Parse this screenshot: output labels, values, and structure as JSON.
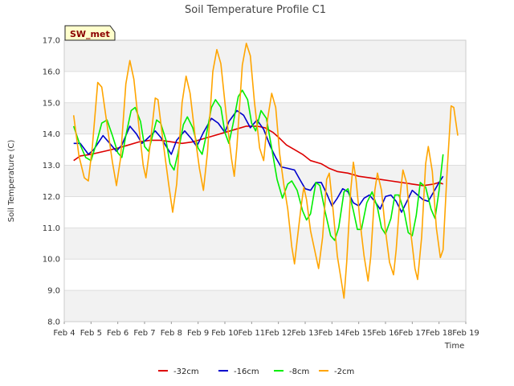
{
  "chart_data": {
    "type": "line",
    "title": "Soil Temperature Profile C1",
    "xlabel": "Time",
    "ylabel": "Soil Temperature (C)",
    "badge": "SW_met",
    "ylim": [
      8.0,
      17.0
    ],
    "xlim": [
      4,
      19
    ],
    "y_ticks": [
      "8.0",
      "9.0",
      "10.0",
      "11.0",
      "12.0",
      "13.0",
      "14.0",
      "15.0",
      "16.0",
      "17.0"
    ],
    "x_ticks": [
      "Feb 4",
      "Feb 5",
      "Feb 6",
      "Feb 7",
      "Feb 8",
      "Feb 9",
      "Feb 10",
      "Feb 11",
      "Feb 12",
      "Feb 13",
      "Feb 14",
      "Feb 15",
      "Feb 16",
      "Feb 17",
      "Feb 18",
      "Feb 19"
    ],
    "grid": true,
    "legend_position": "bottom-center",
    "series": [
      {
        "name": "-32cm",
        "color": "#dd0000",
        "points": [
          [
            4.35,
            13.15
          ],
          [
            4.6,
            13.3
          ],
          [
            5.0,
            13.35
          ],
          [
            5.5,
            13.45
          ],
          [
            6.0,
            13.55
          ],
          [
            6.4,
            13.65
          ],
          [
            6.8,
            13.75
          ],
          [
            7.2,
            13.8
          ],
          [
            7.6,
            13.8
          ],
          [
            8.0,
            13.75
          ],
          [
            8.4,
            13.7
          ],
          [
            8.8,
            13.75
          ],
          [
            9.2,
            13.85
          ],
          [
            9.6,
            13.95
          ],
          [
            10.0,
            14.05
          ],
          [
            10.4,
            14.15
          ],
          [
            10.8,
            14.25
          ],
          [
            11.2,
            14.25
          ],
          [
            11.5,
            14.2
          ],
          [
            11.8,
            14.05
          ],
          [
            12.0,
            13.9
          ],
          [
            12.3,
            13.65
          ],
          [
            12.6,
            13.5
          ],
          [
            12.9,
            13.35
          ],
          [
            13.2,
            13.15
          ],
          [
            13.6,
            13.05
          ],
          [
            13.9,
            12.9
          ],
          [
            14.2,
            12.8
          ],
          [
            14.6,
            12.75
          ],
          [
            15.0,
            12.65
          ],
          [
            15.4,
            12.6
          ],
          [
            15.8,
            12.55
          ],
          [
            16.2,
            12.5
          ],
          [
            16.6,
            12.45
          ],
          [
            17.0,
            12.4
          ],
          [
            17.4,
            12.35
          ],
          [
            17.8,
            12.4
          ],
          [
            18.0,
            12.45
          ],
          [
            18.15,
            12.4
          ]
        ]
      },
      {
        "name": "-16cm",
        "color": "#0000cc",
        "points": [
          [
            4.35,
            13.7
          ],
          [
            4.6,
            13.7
          ],
          [
            4.9,
            13.35
          ],
          [
            5.1,
            13.5
          ],
          [
            5.45,
            13.95
          ],
          [
            5.7,
            13.7
          ],
          [
            5.95,
            13.45
          ],
          [
            6.15,
            13.65
          ],
          [
            6.45,
            14.25
          ],
          [
            6.7,
            14.0
          ],
          [
            6.9,
            13.7
          ],
          [
            7.1,
            13.85
          ],
          [
            7.4,
            14.1
          ],
          [
            7.6,
            13.9
          ],
          [
            7.85,
            13.55
          ],
          [
            8.0,
            13.35
          ],
          [
            8.2,
            13.8
          ],
          [
            8.5,
            14.1
          ],
          [
            8.75,
            13.85
          ],
          [
            8.95,
            13.6
          ],
          [
            9.2,
            14.05
          ],
          [
            9.5,
            14.5
          ],
          [
            9.75,
            14.35
          ],
          [
            10.0,
            14.05
          ],
          [
            10.15,
            14.4
          ],
          [
            10.45,
            14.75
          ],
          [
            10.7,
            14.6
          ],
          [
            10.95,
            14.2
          ],
          [
            11.2,
            14.45
          ],
          [
            11.45,
            14.15
          ],
          [
            11.7,
            13.6
          ],
          [
            11.9,
            13.25
          ],
          [
            12.1,
            12.95
          ],
          [
            12.35,
            12.9
          ],
          [
            12.6,
            12.85
          ],
          [
            12.8,
            12.55
          ],
          [
            13.0,
            12.25
          ],
          [
            13.2,
            12.2
          ],
          [
            13.4,
            12.45
          ],
          [
            13.6,
            12.45
          ],
          [
            13.8,
            12.1
          ],
          [
            14.0,
            11.7
          ],
          [
            14.2,
            11.95
          ],
          [
            14.4,
            12.25
          ],
          [
            14.6,
            12.15
          ],
          [
            14.8,
            11.8
          ],
          [
            15.0,
            11.7
          ],
          [
            15.2,
            11.95
          ],
          [
            15.4,
            12.05
          ],
          [
            15.6,
            11.85
          ],
          [
            15.8,
            11.6
          ],
          [
            16.0,
            12.0
          ],
          [
            16.2,
            12.05
          ],
          [
            16.4,
            11.85
          ],
          [
            16.6,
            11.5
          ],
          [
            16.8,
            11.85
          ],
          [
            17.0,
            12.2
          ],
          [
            17.2,
            12.05
          ],
          [
            17.4,
            11.9
          ],
          [
            17.6,
            11.85
          ],
          [
            17.8,
            12.15
          ],
          [
            18.0,
            12.45
          ],
          [
            18.15,
            12.65
          ]
        ]
      },
      {
        "name": "-8cm",
        "color": "#00ee00",
        "points": [
          [
            4.35,
            14.25
          ],
          [
            4.55,
            13.75
          ],
          [
            4.8,
            13.25
          ],
          [
            5.0,
            13.15
          ],
          [
            5.2,
            13.7
          ],
          [
            5.4,
            14.35
          ],
          [
            5.6,
            14.45
          ],
          [
            5.8,
            13.95
          ],
          [
            6.0,
            13.4
          ],
          [
            6.15,
            13.25
          ],
          [
            6.3,
            13.95
          ],
          [
            6.5,
            14.75
          ],
          [
            6.65,
            14.85
          ],
          [
            6.85,
            14.4
          ],
          [
            7.0,
            13.6
          ],
          [
            7.15,
            13.45
          ],
          [
            7.3,
            13.95
          ],
          [
            7.45,
            14.45
          ],
          [
            7.6,
            14.35
          ],
          [
            7.8,
            13.8
          ],
          [
            7.95,
            13.05
          ],
          [
            8.1,
            12.85
          ],
          [
            8.25,
            13.4
          ],
          [
            8.45,
            14.3
          ],
          [
            8.6,
            14.55
          ],
          [
            8.8,
            14.2
          ],
          [
            9.0,
            13.55
          ],
          [
            9.15,
            13.35
          ],
          [
            9.3,
            13.95
          ],
          [
            9.5,
            14.85
          ],
          [
            9.65,
            15.1
          ],
          [
            9.85,
            14.85
          ],
          [
            10.0,
            14.05
          ],
          [
            10.15,
            13.7
          ],
          [
            10.3,
            14.3
          ],
          [
            10.5,
            15.2
          ],
          [
            10.65,
            15.4
          ],
          [
            10.85,
            15.1
          ],
          [
            11.0,
            14.35
          ],
          [
            11.15,
            14.1
          ],
          [
            11.35,
            14.75
          ],
          [
            11.55,
            14.5
          ],
          [
            11.75,
            13.55
          ],
          [
            11.95,
            12.55
          ],
          [
            12.15,
            11.95
          ],
          [
            12.35,
            12.4
          ],
          [
            12.5,
            12.5
          ],
          [
            12.7,
            12.2
          ],
          [
            12.9,
            11.55
          ],
          [
            13.05,
            11.25
          ],
          [
            13.2,
            11.45
          ],
          [
            13.4,
            12.45
          ],
          [
            13.55,
            12.35
          ],
          [
            13.75,
            11.5
          ],
          [
            13.95,
            10.75
          ],
          [
            14.1,
            10.6
          ],
          [
            14.25,
            11.0
          ],
          [
            14.45,
            12.15
          ],
          [
            14.6,
            12.25
          ],
          [
            14.8,
            11.55
          ],
          [
            14.95,
            10.95
          ],
          [
            15.1,
            10.95
          ],
          [
            15.3,
            11.8
          ],
          [
            15.5,
            12.15
          ],
          [
            15.7,
            11.65
          ],
          [
            15.85,
            11.0
          ],
          [
            16.0,
            10.8
          ],
          [
            16.2,
            11.3
          ],
          [
            16.35,
            12.05
          ],
          [
            16.5,
            12.05
          ],
          [
            16.7,
            11.5
          ],
          [
            16.85,
            10.85
          ],
          [
            17.0,
            10.75
          ],
          [
            17.15,
            11.4
          ],
          [
            17.3,
            12.45
          ],
          [
            17.5,
            12.3
          ],
          [
            17.7,
            11.6
          ],
          [
            17.85,
            11.3
          ],
          [
            18.0,
            12.2
          ],
          [
            18.15,
            13.35
          ]
        ]
      },
      {
        "name": "-2cm",
        "color": "#ffa500",
        "points": [
          [
            4.35,
            14.6
          ],
          [
            4.55,
            13.3
          ],
          [
            4.75,
            12.6
          ],
          [
            4.9,
            12.5
          ],
          [
            5.05,
            13.6
          ],
          [
            5.25,
            15.65
          ],
          [
            5.4,
            15.5
          ],
          [
            5.6,
            14.3
          ],
          [
            5.8,
            13.1
          ],
          [
            5.95,
            12.35
          ],
          [
            6.1,
            13.2
          ],
          [
            6.3,
            15.6
          ],
          [
            6.45,
            16.35
          ],
          [
            6.6,
            15.75
          ],
          [
            6.8,
            14.15
          ],
          [
            6.95,
            13.0
          ],
          [
            7.05,
            12.6
          ],
          [
            7.2,
            13.6
          ],
          [
            7.4,
            15.15
          ],
          [
            7.5,
            15.1
          ],
          [
            7.7,
            13.7
          ],
          [
            7.9,
            12.4
          ],
          [
            8.05,
            11.5
          ],
          [
            8.2,
            12.4
          ],
          [
            8.4,
            15.0
          ],
          [
            8.55,
            15.85
          ],
          [
            8.7,
            15.3
          ],
          [
            8.9,
            13.85
          ],
          [
            9.05,
            12.9
          ],
          [
            9.2,
            12.2
          ],
          [
            9.35,
            13.4
          ],
          [
            9.55,
            16.0
          ],
          [
            9.7,
            16.7
          ],
          [
            9.85,
            16.25
          ],
          [
            10.05,
            14.6
          ],
          [
            10.25,
            13.2
          ],
          [
            10.35,
            12.65
          ],
          [
            10.45,
            13.6
          ],
          [
            10.65,
            16.2
          ],
          [
            10.8,
            16.9
          ],
          [
            10.95,
            16.5
          ],
          [
            11.1,
            15.05
          ],
          [
            11.3,
            13.55
          ],
          [
            11.45,
            13.15
          ],
          [
            11.6,
            14.5
          ],
          [
            11.75,
            15.3
          ],
          [
            11.9,
            14.85
          ],
          [
            12.05,
            13.35
          ],
          [
            12.2,
            12.4
          ],
          [
            12.35,
            11.6
          ],
          [
            12.5,
            10.4
          ],
          [
            12.6,
            9.85
          ],
          [
            12.7,
            10.6
          ],
          [
            12.85,
            11.7
          ],
          [
            12.95,
            12.3
          ],
          [
            13.05,
            11.9
          ],
          [
            13.2,
            10.9
          ],
          [
            13.35,
            10.3
          ],
          [
            13.5,
            9.7
          ],
          [
            13.65,
            10.7
          ],
          [
            13.8,
            12.55
          ],
          [
            13.9,
            12.75
          ],
          [
            14.05,
            11.5
          ],
          [
            14.2,
            10.1
          ],
          [
            14.35,
            9.3
          ],
          [
            14.45,
            8.75
          ],
          [
            14.55,
            9.9
          ],
          [
            14.7,
            12.2
          ],
          [
            14.8,
            13.1
          ],
          [
            14.9,
            12.55
          ],
          [
            15.05,
            11.2
          ],
          [
            15.2,
            10.1
          ],
          [
            15.35,
            9.3
          ],
          [
            15.45,
            10.1
          ],
          [
            15.6,
            12.2
          ],
          [
            15.7,
            12.75
          ],
          [
            15.85,
            12.2
          ],
          [
            16.0,
            10.9
          ],
          [
            16.15,
            9.9
          ],
          [
            16.3,
            9.5
          ],
          [
            16.4,
            10.3
          ],
          [
            16.55,
            12.05
          ],
          [
            16.65,
            12.85
          ],
          [
            16.8,
            12.4
          ],
          [
            16.95,
            10.8
          ],
          [
            17.1,
            9.7
          ],
          [
            17.2,
            9.35
          ],
          [
            17.35,
            10.7
          ],
          [
            17.5,
            13.05
          ],
          [
            17.6,
            13.6
          ],
          [
            17.75,
            12.8
          ],
          [
            17.9,
            11.0
          ],
          [
            18.05,
            10.05
          ],
          [
            18.15,
            10.3
          ],
          [
            18.3,
            12.8
          ],
          [
            18.45,
            14.9
          ],
          [
            18.55,
            14.85
          ],
          [
            18.7,
            13.95
          ]
        ]
      }
    ]
  }
}
